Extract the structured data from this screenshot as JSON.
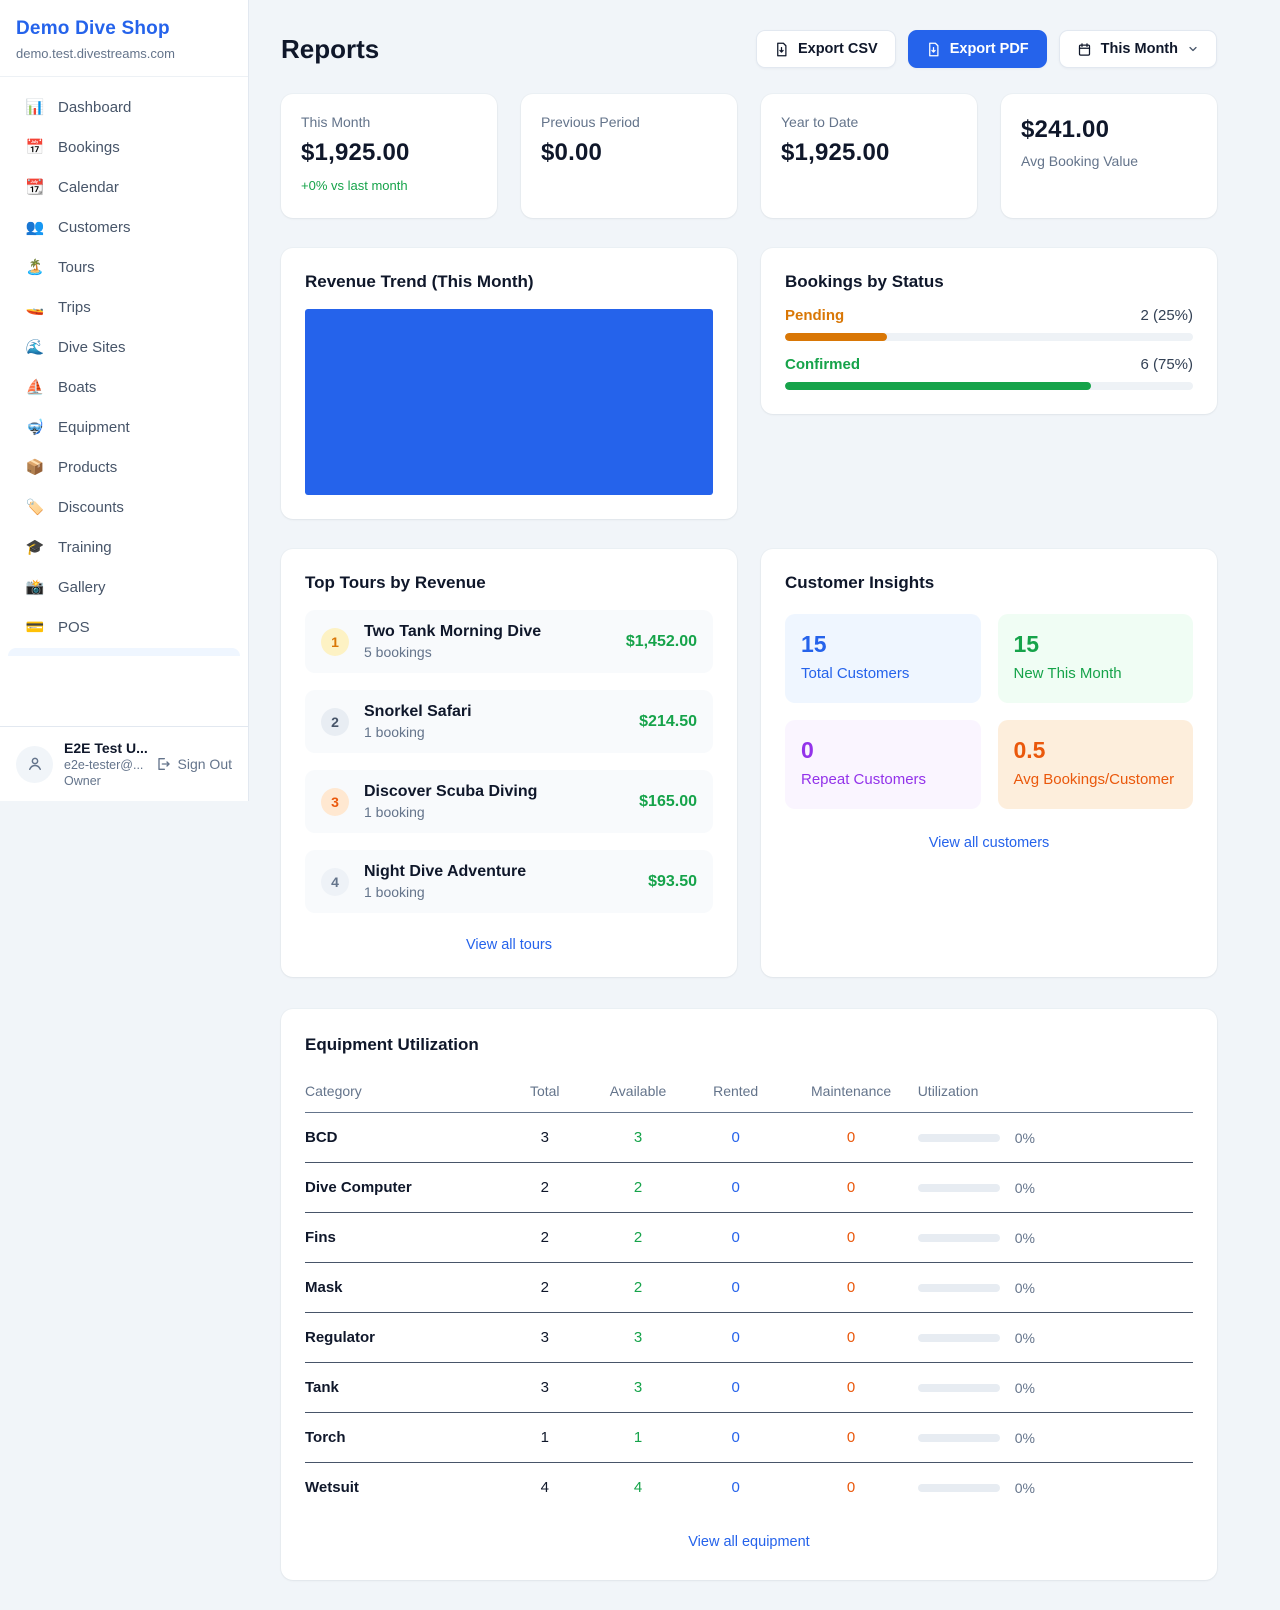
{
  "sidebar": {
    "shop_name": "Demo Dive Shop",
    "shop_domain": "demo.test.divestreams.com",
    "items": [
      {
        "icon": "📊",
        "label": "Dashboard"
      },
      {
        "icon": "📅",
        "label": "Bookings"
      },
      {
        "icon": "📆",
        "label": "Calendar"
      },
      {
        "icon": "👥",
        "label": "Customers"
      },
      {
        "icon": "🏝️",
        "label": "Tours"
      },
      {
        "icon": "🚤",
        "label": "Trips"
      },
      {
        "icon": "🌊",
        "label": "Dive Sites"
      },
      {
        "icon": "⛵",
        "label": "Boats"
      },
      {
        "icon": "🤿",
        "label": "Equipment"
      },
      {
        "icon": "📦",
        "label": "Products"
      },
      {
        "icon": "🏷️",
        "label": "Discounts"
      },
      {
        "icon": "🎓",
        "label": "Training"
      },
      {
        "icon": "📸",
        "label": "Gallery"
      },
      {
        "icon": "💳",
        "label": "POS"
      }
    ],
    "user": {
      "name": "E2E Test U...",
      "email": "e2e-tester@...",
      "role": "Owner",
      "sign_out_label": "Sign Out"
    }
  },
  "header": {
    "title": "Reports",
    "export_csv_label": "Export CSV",
    "export_pdf_label": "Export PDF",
    "period_label": "This Month"
  },
  "stats": [
    {
      "label": "This Month",
      "value": "$1,925.00",
      "delta": "+0% vs last month"
    },
    {
      "label": "Previous Period",
      "value": "$0.00"
    },
    {
      "label": "Year to Date",
      "value": "$1,925.00"
    },
    {
      "label": "Avg Booking Value",
      "value": "$241.00"
    }
  ],
  "revenue_trend": {
    "title": "Revenue Trend (This Month)",
    "bar_color": "#2563eb"
  },
  "bookings_by_status": {
    "title": "Bookings by Status",
    "rows": [
      {
        "label": "Pending",
        "value_text": "2 (25%)",
        "count": 2,
        "percent": 25,
        "color": "#d97706"
      },
      {
        "label": "Confirmed",
        "value_text": "6 (75%)",
        "count": 6,
        "percent": 75,
        "color": "#16a34a"
      }
    ]
  },
  "top_tours": {
    "title": "Top Tours by Revenue",
    "link_label": "View all tours",
    "items": [
      {
        "rank": "1",
        "name": "Two Tank Morning Dive",
        "bookings": "5 bookings",
        "amount": "$1,452.00"
      },
      {
        "rank": "2",
        "name": "Snorkel Safari",
        "bookings": "1 booking",
        "amount": "$214.50"
      },
      {
        "rank": "3",
        "name": "Discover Scuba Diving",
        "bookings": "1 booking",
        "amount": "$165.00"
      },
      {
        "rank": "4",
        "name": "Night Dive Adventure",
        "bookings": "1 booking",
        "amount": "$93.50"
      }
    ]
  },
  "customer_insights": {
    "title": "Customer Insights",
    "link_label": "View all customers",
    "tiles": [
      {
        "value": "15",
        "label": "Total Customers",
        "color": "#2563eb"
      },
      {
        "value": "15",
        "label": "New This Month",
        "color": "#16a34a"
      },
      {
        "value": "0",
        "label": "Repeat Customers",
        "color": "#9333ea"
      },
      {
        "value": "0.5",
        "label": "Avg Bookings/Customer",
        "color": "#ea580c"
      }
    ]
  },
  "equipment": {
    "title": "Equipment Utilization",
    "link_label": "View all equipment",
    "columns": [
      "Category",
      "Total",
      "Available",
      "Rented",
      "Maintenance",
      "Utilization"
    ],
    "rows": [
      {
        "category": "BCD",
        "total": "3",
        "available": "3",
        "rented": "0",
        "maintenance": "0",
        "utilization": "0%"
      },
      {
        "category": "Dive Computer",
        "total": "2",
        "available": "2",
        "rented": "0",
        "maintenance": "0",
        "utilization": "0%"
      },
      {
        "category": "Fins",
        "total": "2",
        "available": "2",
        "rented": "0",
        "maintenance": "0",
        "utilization": "0%"
      },
      {
        "category": "Mask",
        "total": "2",
        "available": "2",
        "rented": "0",
        "maintenance": "0",
        "utilization": "0%"
      },
      {
        "category": "Regulator",
        "total": "3",
        "available": "3",
        "rented": "0",
        "maintenance": "0",
        "utilization": "0%"
      },
      {
        "category": "Tank",
        "total": "3",
        "available": "3",
        "rented": "0",
        "maintenance": "0",
        "utilization": "0%"
      },
      {
        "category": "Torch",
        "total": "1",
        "available": "1",
        "rented": "0",
        "maintenance": "0",
        "utilization": "0%"
      },
      {
        "category": "Wetsuit",
        "total": "4",
        "available": "4",
        "rented": "0",
        "maintenance": "0",
        "utilization": "0%"
      }
    ]
  }
}
